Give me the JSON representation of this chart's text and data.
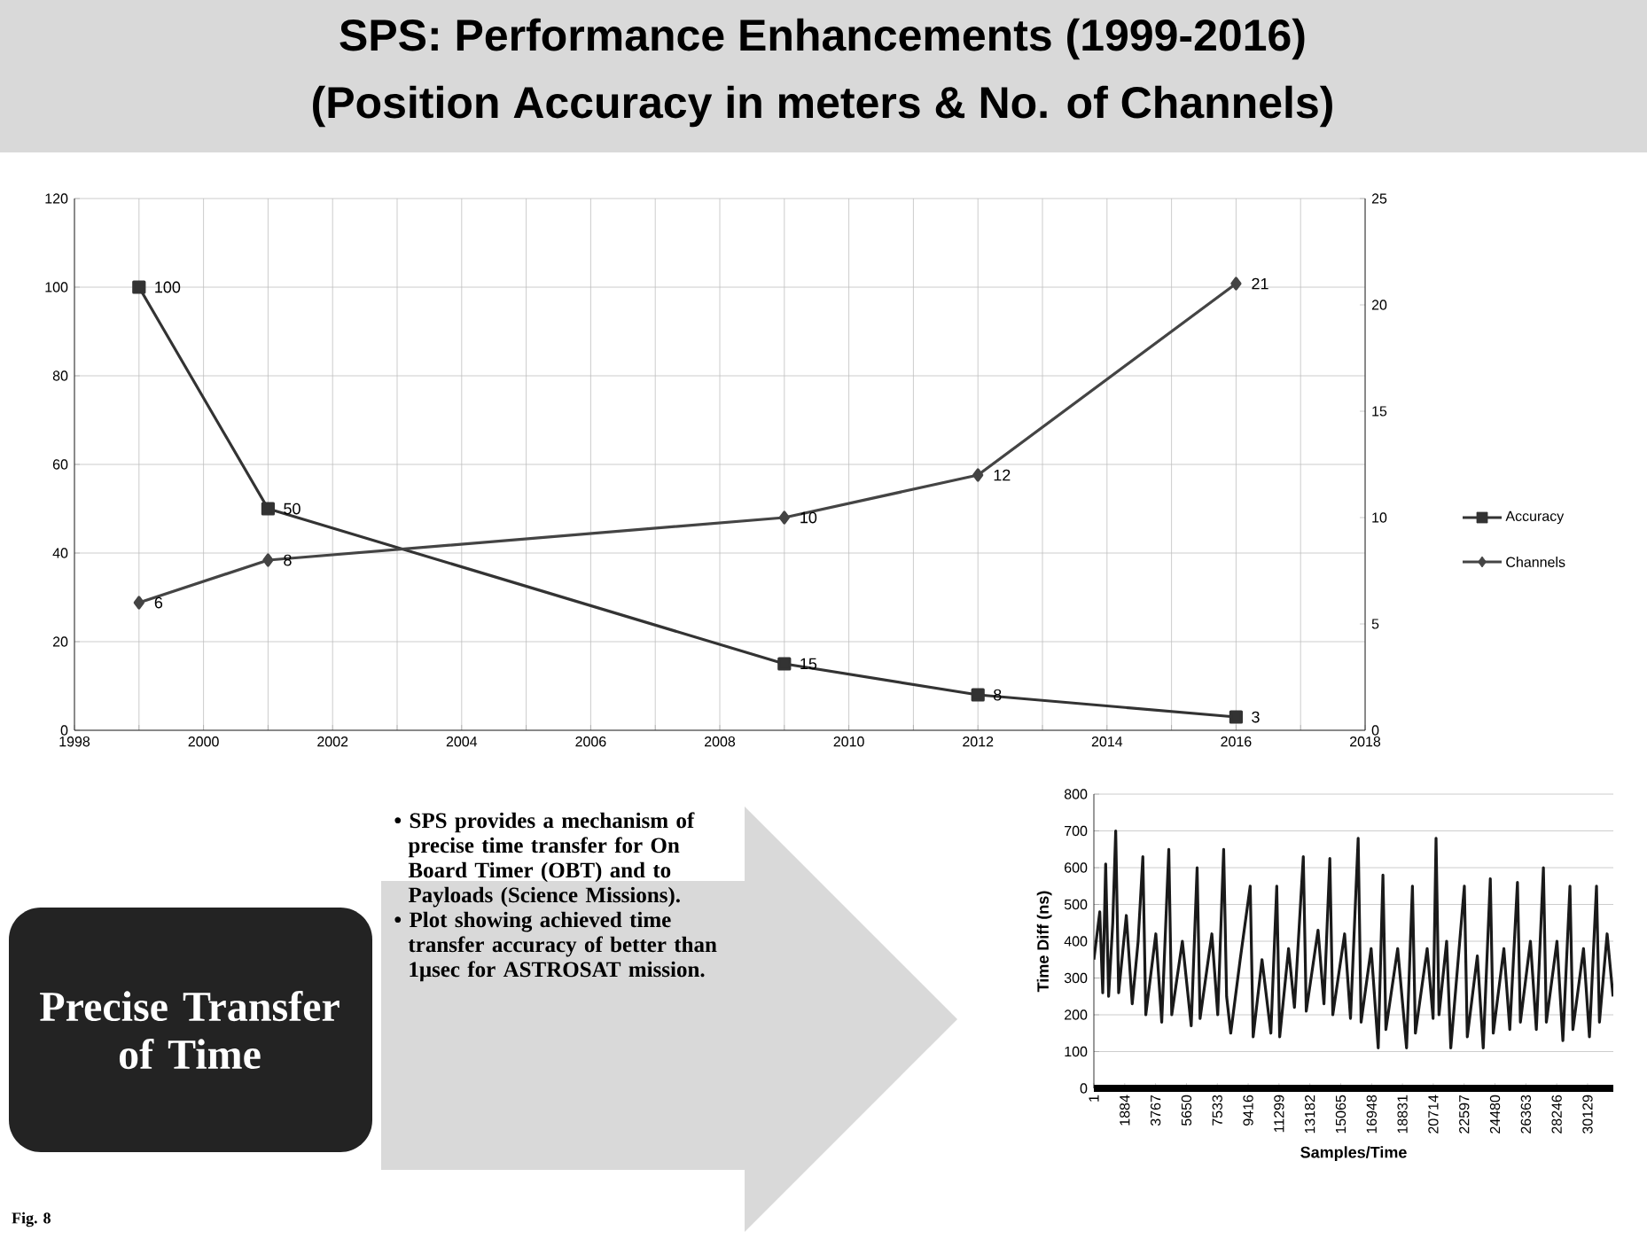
{
  "chart_data": [
    {
      "type": "line",
      "title": "SPS: Performance Enhancements (1999-2016)",
      "subtitle": "(Position Accuracy in meters & No. of Channels)",
      "x": [
        1999,
        2001,
        2009,
        2012,
        2016
      ],
      "series": [
        {
          "name": "Accuracy",
          "color": "#333333",
          "marker": "square",
          "values": [
            100,
            50,
            15,
            8,
            3
          ]
        },
        {
          "name": "Channels",
          "color": "#444444",
          "marker": "diamond",
          "axis": "y2",
          "values": [
            6,
            8,
            10,
            12,
            21
          ]
        }
      ],
      "xlim": [
        1998,
        2018
      ],
      "xticks": [
        1998,
        {
          "value": 1999,
          "label": null
        },
        2000,
        {
          "value": 2001,
          "label": null
        },
        2002,
        {
          "value": 2003,
          "label": null
        },
        2004,
        {
          "value": 2005,
          "label": null
        },
        2006,
        {
          "value": 2007,
          "label": null
        },
        2008,
        {
          "value": 2009,
          "label": null
        },
        2010,
        {
          "value": 2011,
          "label": null
        },
        2012,
        {
          "value": 2013,
          "label": null
        },
        2014,
        {
          "value": 2015,
          "label": null
        },
        2016,
        {
          "value": 2017,
          "label": null
        },
        2018
      ],
      "ylim": [
        0,
        120
      ],
      "yticks": [
        0,
        20,
        40,
        60,
        80,
        100,
        120
      ],
      "y2lim": [
        0,
        25
      ],
      "y2ticks": [
        0,
        5,
        10,
        15,
        20,
        25
      ],
      "grid": true,
      "legend": "right",
      "data_labels": true
    },
    {
      "type": "line",
      "xlabel": "Samples/Time",
      "ylabel": "Time Diff (ns)",
      "x": [
        1,
        361,
        541,
        721,
        901,
        1153,
        1333,
        1513,
        1981,
        2341,
        2701,
        2989,
        3169,
        3781,
        4141,
        4573,
        4753,
        5401,
        5941,
        6301,
        6481,
        7201,
        7561,
        7921,
        8101,
        8353,
        8929,
        9541,
        9721,
        10261,
        10801,
        11161,
        11341,
        11881,
        12241,
        12781,
        12961,
        13681,
        14041,
        14401,
        14581,
        15301,
        15661,
        16129,
        16309,
        16921,
        17353,
        17641,
        17821,
        18541,
        19081,
        19441,
        19621,
        20341,
        20701,
        20881,
        21061,
        21529,
        21781,
        22609,
        22789,
        23401,
        23761,
        24193,
        24373,
        25021,
        25381,
        25849,
        26029,
        26641,
        27001,
        27433,
        27613,
        28261,
        28621,
        29053,
        29233,
        29881,
        30241,
        30673,
        30853,
        31321,
        31681
      ],
      "series": [
        {
          "color": "#1a1a1a",
          "values": [
            350,
            480,
            260,
            610,
            250,
            450,
            700,
            260,
            470,
            230,
            400,
            630,
            200,
            420,
            180,
            650,
            200,
            400,
            170,
            600,
            190,
            420,
            200,
            650,
            250,
            150,
            350,
            550,
            140,
            350,
            150,
            550,
            140,
            380,
            220,
            630,
            210,
            430,
            230,
            625,
            200,
            420,
            190,
            680,
            180,
            380,
            110,
            580,
            160,
            380,
            110,
            550,
            150,
            380,
            190,
            680,
            200,
            400,
            110,
            550,
            140,
            360,
            110,
            570,
            150,
            380,
            160,
            560,
            180,
            400,
            160,
            600,
            180,
            400,
            130,
            550,
            160,
            380,
            140,
            550,
            180,
            420,
            250
          ]
        }
      ],
      "xlim": [
        1,
        31700
      ],
      "xticks": [
        1,
        1884,
        3767,
        5650,
        7533,
        9416,
        11299,
        13182,
        15065,
        16948,
        18831,
        20714,
        22597,
        24480,
        26363,
        28246,
        30129
      ],
      "ylim": [
        0,
        800
      ],
      "yticks": [
        0,
        100,
        200,
        300,
        400,
        500,
        600,
        700,
        800
      ],
      "grid": "y"
    },
    {
      "type": "other",
      "annotations": [
        "Precise Transfer of Time",
        "• SPS provides a mechanism of precise time transfer for On Board Timer (OBT) and to Payloads (Science Missions).",
        "• Plot showing achieved time transfer accuracy of better than 1μsec for ASTROSAT mission.",
        "Fig. 8"
      ]
    }
  ]
}
